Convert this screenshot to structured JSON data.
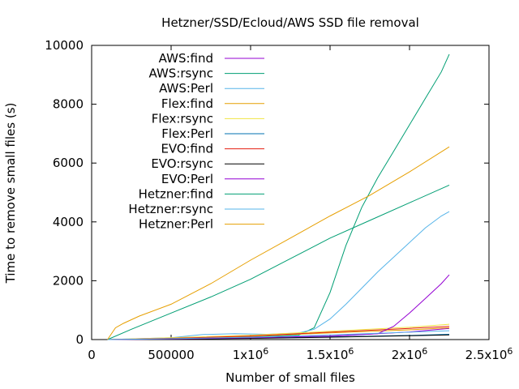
{
  "chart_data": {
    "type": "line",
    "title": "Hetzner/SSD/Ecloud/AWS SSD file removal",
    "xlabel": "Number of small files",
    "ylabel": "Time to remove small files (s)",
    "xlim": [
      0,
      2500000
    ],
    "ylim": [
      0,
      10000
    ],
    "x_ticks": [
      {
        "value": 0,
        "label": "0"
      },
      {
        "value": 500000,
        "label": "500000"
      },
      {
        "value": 1000000,
        "label": "1x10",
        "exp": "6"
      },
      {
        "value": 1500000,
        "label": "1.5x10",
        "exp": "6"
      },
      {
        "value": 2000000,
        "label": "2x10",
        "exp": "6"
      },
      {
        "value": 2500000,
        "label": "2.5x10",
        "exp": "6"
      }
    ],
    "y_ticks": [
      {
        "value": 0,
        "label": "0"
      },
      {
        "value": 2000,
        "label": "2000"
      },
      {
        "value": 4000,
        "label": "4000"
      },
      {
        "value": 6000,
        "label": "6000"
      },
      {
        "value": 8000,
        "label": "8000"
      },
      {
        "value": 10000,
        "label": "10000"
      }
    ],
    "grid": false,
    "legend_position": "top-left",
    "series": [
      {
        "name": "AWS:find",
        "color": "#9400d3",
        "x": [
          100000,
          500000,
          1000000,
          1500000,
          2000000,
          2250000
        ],
        "y": [
          0,
          20,
          60,
          110,
          260,
          380
        ]
      },
      {
        "name": "AWS:rsync",
        "color": "#009e73",
        "x": [
          100000,
          500000,
          1000000,
          1300000,
          1400000,
          1500000,
          1600000,
          1700000,
          1800000,
          1900000,
          2000000,
          2100000,
          2200000,
          2250000
        ],
        "y": [
          0,
          30,
          90,
          150,
          400,
          1600,
          3200,
          4500,
          5500,
          6400,
          7300,
          8200,
          9100,
          9700
        ]
      },
      {
        "name": "AWS:Perl",
        "color": "#56b4e9",
        "x": [
          100000,
          500000,
          700000,
          900000,
          1100000,
          1300000,
          1400000,
          1500000,
          1600000,
          1700000,
          1800000,
          1900000,
          2000000,
          2100000,
          2200000,
          2250000
        ],
        "y": [
          0,
          60,
          170,
          200,
          180,
          220,
          350,
          700,
          1200,
          1750,
          2300,
          2800,
          3300,
          3800,
          4200,
          4350
        ]
      },
      {
        "name": "Flex:find",
        "color": "#e69f00",
        "x": [
          100000,
          500000,
          1000000,
          1500000,
          2000000,
          2250000
        ],
        "y": [
          0,
          40,
          110,
          230,
          330,
          400
        ]
      },
      {
        "name": "Flex:rsync",
        "color": "#f0e442",
        "x": [
          100000,
          500000,
          1000000,
          1500000,
          2000000,
          2250000
        ],
        "y": [
          0,
          60,
          150,
          280,
          420,
          520
        ]
      },
      {
        "name": "Flex:Perl",
        "color": "#0072b2",
        "x": [
          100000,
          500000,
          1000000,
          1500000,
          2000000,
          2250000
        ],
        "y": [
          0,
          20,
          50,
          90,
          140,
          180
        ]
      },
      {
        "name": "EVO:find",
        "color": "#e51e10",
        "x": [
          100000,
          500000,
          1000000,
          1500000,
          2000000,
          2250000
        ],
        "y": [
          0,
          40,
          120,
          250,
          380,
          450
        ]
      },
      {
        "name": "EVO:rsync",
        "color": "#000000",
        "x": [
          100000,
          500000,
          1000000,
          1500000,
          2000000,
          2250000
        ],
        "y": [
          0,
          15,
          40,
          80,
          130,
          160
        ]
      },
      {
        "name": "EVO:Perl",
        "color": "#9400d3",
        "x": [
          100000,
          500000,
          1000000,
          1500000,
          1800000,
          1900000,
          2000000,
          2100000,
          2200000,
          2250000
        ],
        "y": [
          0,
          20,
          60,
          120,
          200,
          450,
          900,
          1400,
          1900,
          2200
        ]
      },
      {
        "name": "Hetzner:find",
        "color": "#009e73",
        "x": [
          100000,
          250000,
          500000,
          750000,
          1000000,
          1250000,
          1500000,
          1750000,
          2000000,
          2250000
        ],
        "y": [
          0,
          350,
          900,
          1450,
          2050,
          2750,
          3450,
          4050,
          4650,
          5250
        ]
      },
      {
        "name": "Hetzner:rsync",
        "color": "#56b4e9",
        "x": [
          100000,
          500000,
          1000000,
          1500000,
          2000000,
          2250000
        ],
        "y": [
          0,
          30,
          80,
          160,
          250,
          300
        ]
      },
      {
        "name": "Hetzner:Perl",
        "color": "#e69f00",
        "x": [
          100000,
          150000,
          200000,
          300000,
          500000,
          750000,
          1000000,
          1250000,
          1500000,
          1750000,
          2000000,
          2250000
        ],
        "y": [
          0,
          400,
          550,
          800,
          1200,
          1900,
          2700,
          3450,
          4200,
          4900,
          5700,
          6550
        ]
      }
    ]
  }
}
